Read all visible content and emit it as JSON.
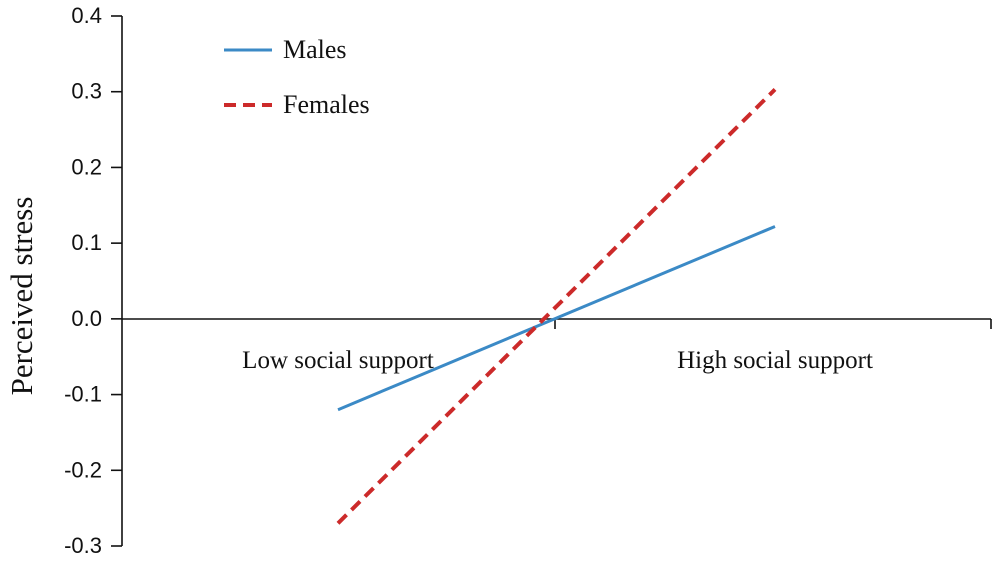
{
  "chart_data": {
    "type": "line",
    "title": "",
    "xlabel": "",
    "ylabel": "Perceived stress",
    "ylim": [
      -0.3,
      0.4
    ],
    "yticks": [
      "0.4",
      "0.3",
      "0.2",
      "0.1",
      "0.0",
      "-0.1",
      "-0.2",
      "-0.3"
    ],
    "categories": [
      "Low social support",
      "High social support"
    ],
    "grid": false,
    "legend_position": "top-left",
    "series": [
      {
        "name": "Males",
        "values": [
          -0.12,
          0.122
        ],
        "color": "#3b8ac6",
        "style": "solid"
      },
      {
        "name": "Females",
        "values": [
          -0.27,
          0.303
        ],
        "color": "#cc2a2a",
        "style": "dashed"
      }
    ]
  }
}
